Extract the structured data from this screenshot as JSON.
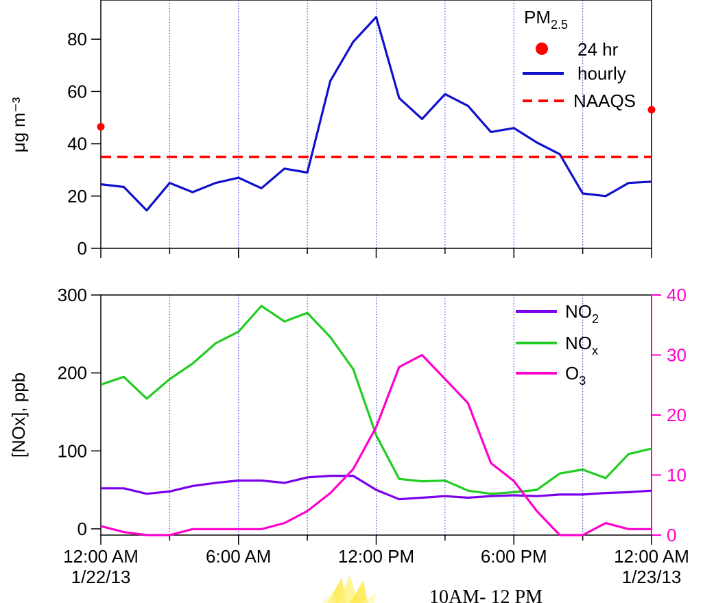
{
  "chart_data": [
    {
      "type": "line",
      "title": "",
      "ylabel": "μg m⁻³",
      "ylim": [
        0,
        95
      ],
      "yticks": [
        0,
        20,
        40,
        60,
        80
      ],
      "xlim": [
        0,
        24
      ],
      "xtick_labels": [
        {
          "x": 0,
          "lines": [
            "12:00 AM",
            "1/22/13"
          ]
        },
        {
          "x": 6,
          "lines": [
            "6:00 AM"
          ]
        },
        {
          "x": 12,
          "lines": [
            "12:00 PM"
          ]
        },
        {
          "x": 18,
          "lines": [
            "6:00 PM"
          ]
        },
        {
          "x": 24,
          "lines": [
            "12:00 AM",
            "1/23/13"
          ]
        }
      ],
      "vertical_gridlines_x": [
        3,
        6,
        9,
        12,
        15,
        18,
        21
      ],
      "legend": {
        "title": "PM",
        "title_subscript": "2.5",
        "placement": "top-right",
        "entries": [
          "24 hr",
          "hourly",
          "NAAQS"
        ]
      },
      "series": [
        {
          "name": "hourly",
          "color": "#1010cc",
          "x": [
            0,
            1,
            2,
            3,
            4,
            5,
            6,
            7,
            8,
            9,
            10,
            11,
            12,
            13,
            14,
            15,
            16,
            17,
            18,
            19,
            20,
            21,
            22,
            23,
            24
          ],
          "values": [
            24.5,
            23.5,
            14.5,
            25,
            21.5,
            25,
            27,
            23,
            30.5,
            29,
            64,
            79,
            88.5,
            57.5,
            49.5,
            59,
            54.5,
            44.5,
            46,
            40.5,
            36,
            21,
            20,
            25,
            25.5
          ]
        },
        {
          "name": "24 hr",
          "color": "#ff0000",
          "x": [
            0,
            24
          ],
          "values": [
            46.5,
            53
          ]
        },
        {
          "name": "NAAQS",
          "color": "#ff0000",
          "x": [
            0,
            24
          ],
          "values": [
            35,
            35
          ]
        }
      ]
    },
    {
      "type": "line",
      "title": "",
      "ylabel": "[NOx], ppb",
      "ylim": [
        -8,
        300
      ],
      "yticks": [
        0,
        100,
        200,
        300
      ],
      "y2lim": [
        0,
        40
      ],
      "y2ticks": [
        0,
        10,
        20,
        30,
        40
      ],
      "y2_color": "#ff00cc",
      "xlim": [
        0,
        24
      ],
      "xtick_labels": [
        {
          "x": 0,
          "lines": [
            "12:00 AM",
            "1/22/13"
          ]
        },
        {
          "x": 6,
          "lines": [
            "6:00 AM"
          ]
        },
        {
          "x": 12,
          "lines": [
            "12:00 PM"
          ]
        },
        {
          "x": 18,
          "lines": [
            "6:00 PM"
          ]
        },
        {
          "x": 24,
          "lines": [
            "12:00 AM",
            "1/23/13"
          ]
        }
      ],
      "vertical_gridlines_x": [
        3,
        6,
        9,
        12,
        15,
        18,
        21
      ],
      "legend": {
        "placement": "top-right",
        "entries": [
          {
            "base": "NO",
            "sub": "2"
          },
          {
            "base": "NO",
            "sub": "x"
          },
          {
            "base": "O",
            "sub": "3"
          }
        ]
      },
      "series": [
        {
          "name": "NO2",
          "color": "#7a00ee",
          "axis": "left",
          "x": [
            0,
            1,
            2,
            3,
            4,
            5,
            6,
            7,
            8,
            9,
            10,
            11,
            12,
            13,
            14,
            15,
            16,
            17,
            18,
            19,
            20,
            21,
            22,
            23,
            24
          ],
          "values": [
            52,
            52,
            45,
            48,
            55,
            59,
            62,
            62,
            59,
            66,
            68,
            68,
            50,
            38,
            40,
            42,
            40,
            42,
            43,
            42,
            44,
            44,
            46,
            47,
            49
          ]
        },
        {
          "name": "NOx",
          "color": "#22cc22",
          "axis": "left",
          "x": [
            0,
            1,
            2,
            3,
            4,
            5,
            6,
            7,
            8,
            9,
            10,
            11,
            12,
            13,
            14,
            15,
            16,
            17,
            18,
            19,
            20,
            21,
            22,
            23,
            24
          ],
          "values": [
            185,
            195,
            167,
            192,
            212,
            238,
            253,
            286,
            266,
            277,
            246,
            205,
            120,
            64,
            61,
            62,
            49,
            45,
            47,
            50,
            71,
            76,
            65,
            96,
            103
          ]
        },
        {
          "name": "O3",
          "color": "#ff00cc",
          "axis": "right",
          "x": [
            0,
            1,
            2,
            3,
            4,
            5,
            6,
            7,
            8,
            9,
            10,
            11,
            12,
            13,
            14,
            15,
            16,
            17,
            18,
            19,
            20,
            21,
            22,
            23,
            24
          ],
          "values": [
            1.5,
            0.5,
            0,
            0,
            1,
            1,
            1,
            1,
            2,
            4,
            7,
            11,
            18,
            28,
            30,
            26,
            22,
            12,
            9,
            4,
            0,
            0,
            2,
            1,
            1
          ]
        }
      ]
    }
  ],
  "annotation": {
    "text": "10AM- 12 PM"
  }
}
